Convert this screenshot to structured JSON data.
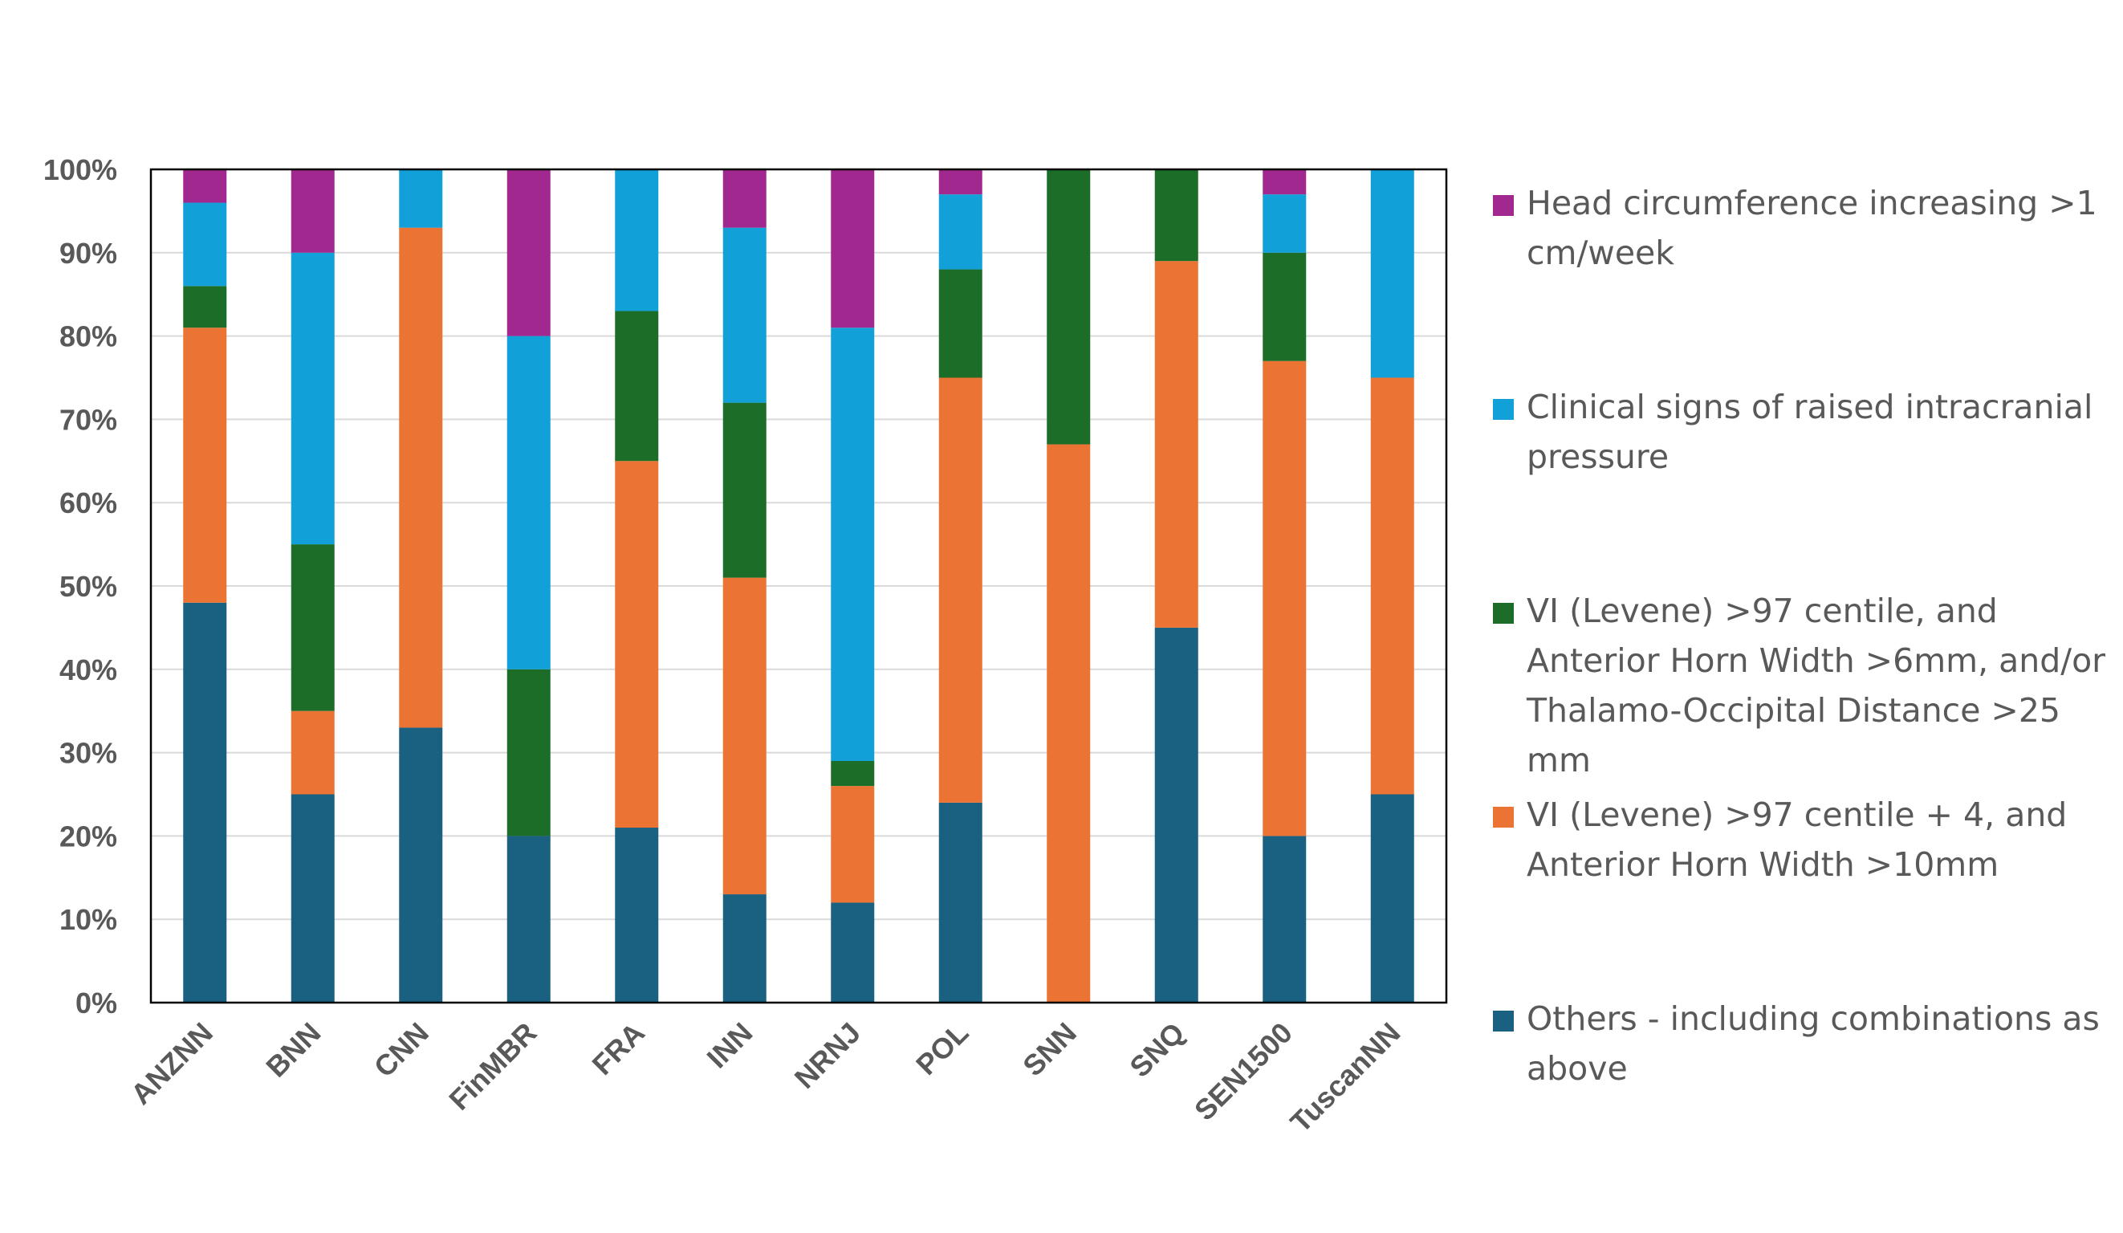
{
  "chart_data": {
    "type": "bar",
    "stacked": true,
    "title": "",
    "xlabel": "",
    "ylabel": "",
    "ylim": [
      0,
      100
    ],
    "yticks": [
      "0%",
      "10%",
      "20%",
      "30%",
      "40%",
      "50%",
      "60%",
      "70%",
      "80%",
      "90%",
      "100%"
    ],
    "categories": [
      "ANZNN",
      "BNN",
      "CNN",
      "FinMBR",
      "FRA",
      "INN",
      "NRNJ",
      "POL",
      "SNN",
      "SNQ",
      "SEN1500",
      "TuscanNN"
    ],
    "series": [
      {
        "name": "Others - including combinations as above",
        "color": "#1a6080",
        "values": [
          48,
          25,
          33,
          20,
          21,
          13,
          12,
          24,
          0,
          45,
          20,
          25
        ]
      },
      {
        "name": "VI (Levene) >97 centile + 4, and Anterior Horn Width >10mm",
        "color": "#eb7434",
        "values": [
          33,
          10,
          60,
          0,
          44,
          38,
          14,
          51,
          67,
          44,
          57,
          50
        ]
      },
      {
        "name": "VI (Levene) >97 centile, and Anterior Horn Width >6mm, and/or Thalamo-Occipital Distance >25 mm",
        "color": "#1b6d28",
        "values": [
          5,
          20,
          0,
          20,
          18,
          21,
          3,
          13,
          33,
          11,
          13,
          0
        ]
      },
      {
        "name": "Clinical signs of raised intracranial pressure",
        "color": "#11a0d8",
        "values": [
          10,
          35,
          7,
          40,
          17,
          21,
          52,
          9,
          0,
          0,
          7,
          25
        ]
      },
      {
        "name": "Head circumference increasing >1 cm/week",
        "color": "#a0288e",
        "values": [
          4,
          10,
          0,
          20,
          0,
          7,
          19,
          3,
          0,
          0,
          3,
          0
        ]
      }
    ],
    "legend_position": "right",
    "grid": true
  },
  "legend": {
    "items": [
      {
        "label": "Head circumference increasing >1 cm/week",
        "color": "#a0288e"
      },
      {
        "label": "Clinical signs of raised intracranial pressure",
        "color": "#11a0d8"
      },
      {
        "label": "VI (Levene) >97 centile, and Anterior Horn Width >6mm, and/or Thalamo-Occipital Distance >25 mm",
        "color": "#1b6d28"
      },
      {
        "label": "VI (Levene) >97 centile + 4, and Anterior Horn Width >10mm",
        "color": "#eb7434"
      },
      {
        "label": "Others - including combinations as above",
        "color": "#1a6080"
      }
    ]
  }
}
